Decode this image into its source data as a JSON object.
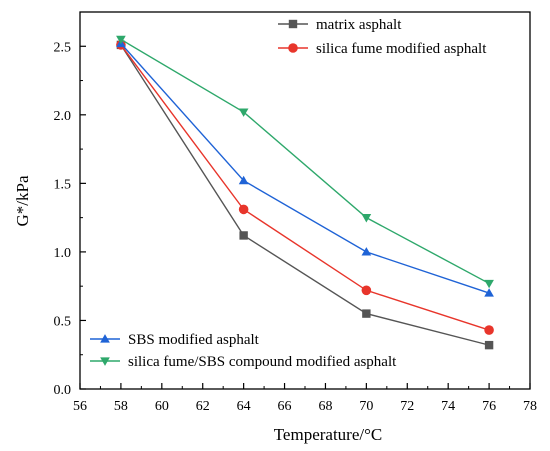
{
  "chart_data": {
    "type": "line",
    "xlabel": "Temperature/°C",
    "ylabel": "G*/kPa",
    "xlim": [
      56,
      78
    ],
    "ylim": [
      0.0,
      2.75
    ],
    "xticks": [
      56,
      58,
      60,
      62,
      64,
      66,
      68,
      70,
      72,
      74,
      76,
      78
    ],
    "yticks": [
      "0.0",
      "0.5",
      "1.0",
      "1.5",
      "2.0",
      "2.5"
    ],
    "x": [
      58,
      64,
      70,
      76
    ],
    "grid": false,
    "series": [
      {
        "name": "matrix asphalt",
        "values": [
          2.51,
          1.12,
          0.55,
          0.32
        ],
        "color": "#555555",
        "marker": "square"
      },
      {
        "name": "silica fume modified asphalt",
        "values": [
          2.51,
          1.31,
          0.72,
          0.43
        ],
        "color": "#e8352b",
        "marker": "circle"
      },
      {
        "name": "SBS modified asphalt",
        "values": [
          2.52,
          1.52,
          1.0,
          0.7
        ],
        "color": "#1f63d6",
        "marker": "triangle-up"
      },
      {
        "name": "silica fume/SBS compound modified asphalt",
        "values": [
          2.55,
          2.02,
          1.25,
          0.77
        ],
        "color": "#2ea86b",
        "marker": "triangle-down"
      }
    ],
    "legends": [
      {
        "placement": "top-right",
        "series": [
          0,
          1
        ]
      },
      {
        "placement": "bottom-left",
        "series": [
          2,
          3
        ]
      }
    ]
  }
}
